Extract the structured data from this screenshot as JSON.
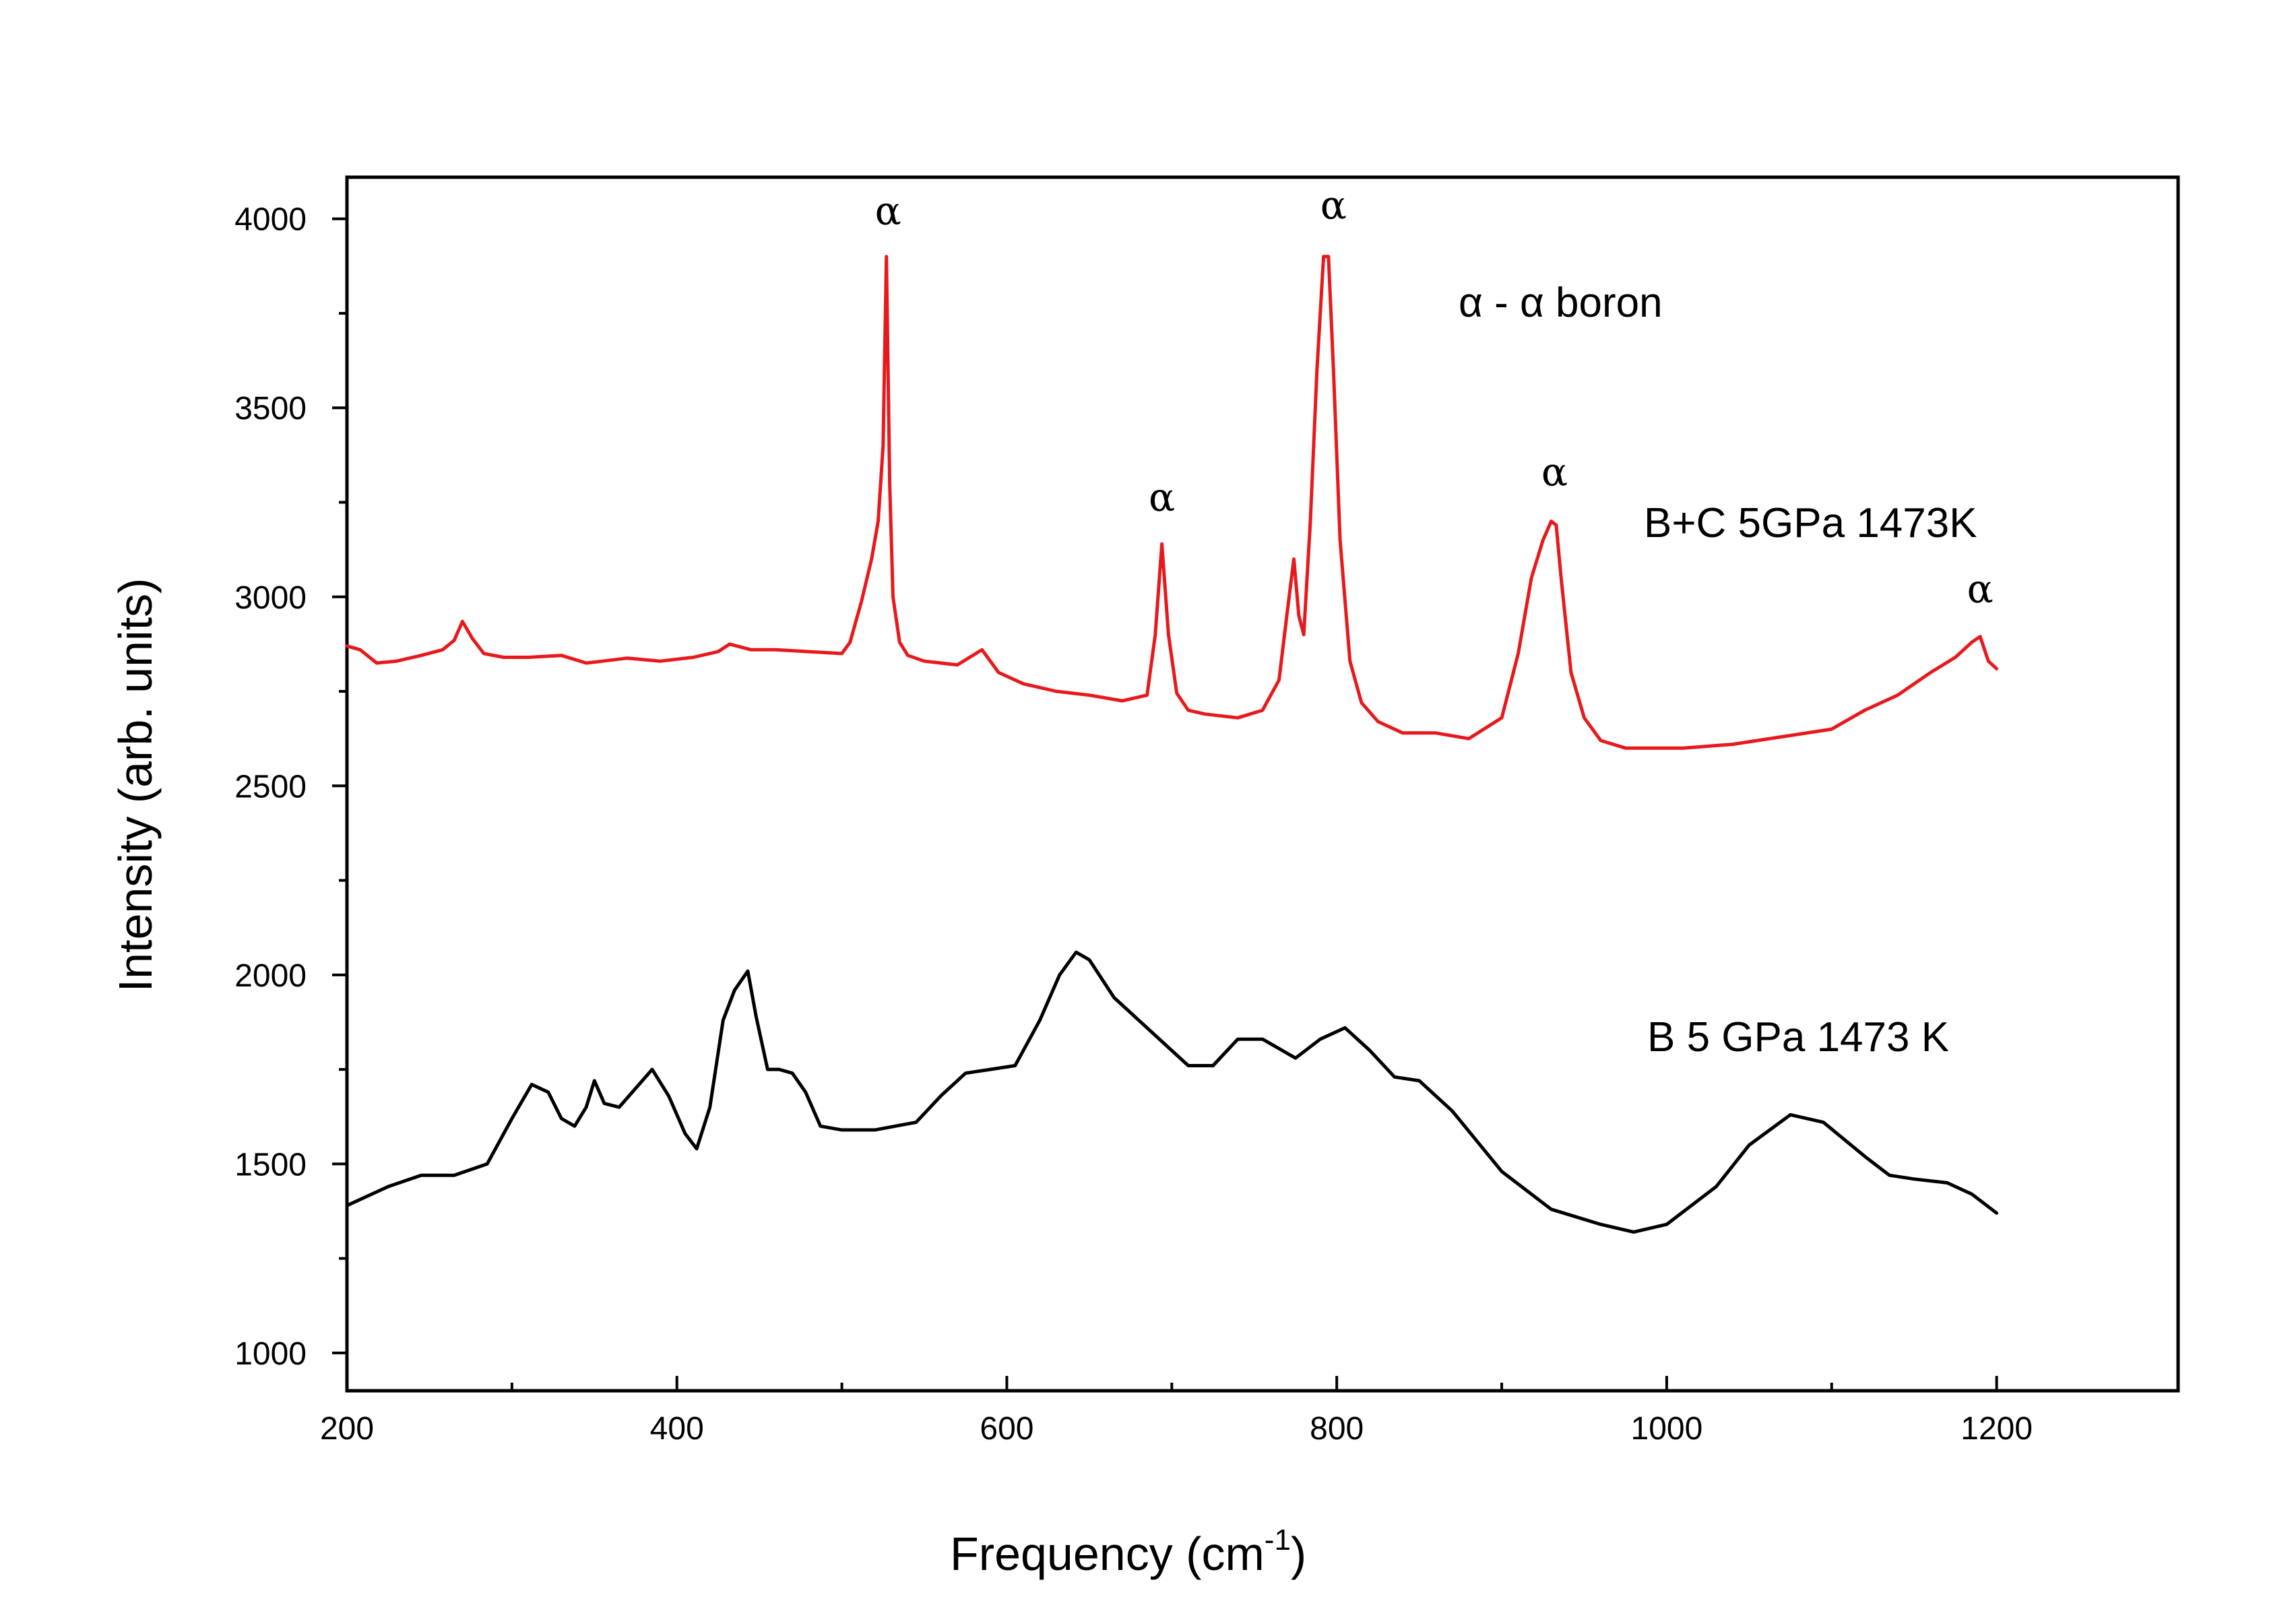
{
  "chart_data": {
    "type": "line",
    "title": "",
    "xlabel_main": "Frequency (cm",
    "xlabel_sup": "-1",
    "xlabel_close": ")",
    "ylabel": "Intensity (arb. units)",
    "xlim": [
      200,
      1310
    ],
    "ylim": [
      900,
      4110
    ],
    "x_major_ticks": [
      200,
      400,
      600,
      800,
      1000,
      1200
    ],
    "x_tick_labels": [
      "200",
      "400",
      "600",
      "800",
      "1000",
      "1200"
    ],
    "x_minor_ticks": [
      300,
      500,
      700,
      900,
      1100
    ],
    "y_major_ticks": [
      1000,
      1500,
      2000,
      2500,
      3000,
      3500,
      4000
    ],
    "y_tick_labels": [
      "1000",
      "1500",
      "2000",
      "2500",
      "3000",
      "3500",
      "4000"
    ],
    "y_minor_ticks": [
      1250,
      1750,
      2250,
      2750,
      3250,
      3750
    ],
    "series": [
      {
        "name": "B+C 5GPa 1473K",
        "color": "#e8191c",
        "x": [
          200,
          208,
          218,
          230,
          245,
          258,
          265,
          270,
          276,
          283,
          295,
          310,
          330,
          345,
          355,
          370,
          390,
          410,
          425,
          432,
          445,
          460,
          480,
          500,
          505,
          512,
          518,
          522,
          525,
          527,
          529,
          531,
          535,
          540,
          550,
          570,
          585,
          595,
          610,
          630,
          650,
          670,
          685,
          690,
          694,
          698,
          703,
          710,
          720,
          740,
          755,
          765,
          770,
          774,
          777,
          780,
          784,
          788,
          792,
          795,
          798,
          802,
          808,
          815,
          825,
          840,
          860,
          880,
          900,
          910,
          918,
          925,
          930,
          933,
          936,
          942,
          950,
          960,
          975,
          990,
          1010,
          1040,
          1070,
          1100,
          1120,
          1140,
          1160,
          1175,
          1185,
          1190,
          1195,
          1200
        ],
        "values": [
          2870,
          2860,
          2825,
          2830,
          2845,
          2860,
          2885,
          2935,
          2890,
          2850,
          2840,
          2840,
          2845,
          2825,
          2830,
          2838,
          2830,
          2840,
          2855,
          2875,
          2860,
          2860,
          2855,
          2850,
          2880,
          2990,
          3100,
          3200,
          3400,
          3900,
          3300,
          3000,
          2880,
          2845,
          2830,
          2820,
          2860,
          2800,
          2770,
          2750,
          2740,
          2725,
          2740,
          2900,
          3140,
          2900,
          2745,
          2700,
          2690,
          2680,
          2700,
          2780,
          2960,
          3100,
          2950,
          2900,
          3200,
          3600,
          3900,
          3900,
          3600,
          3150,
          2830,
          2720,
          2670,
          2640,
          2640,
          2625,
          2680,
          2850,
          3050,
          3150,
          3200,
          3190,
          3050,
          2800,
          2680,
          2620,
          2600,
          2600,
          2600,
          2610,
          2630,
          2650,
          2700,
          2740,
          2800,
          2840,
          2880,
          2895,
          2830,
          2810
        ]
      },
      {
        "name": "B 5 GPa 1473 K",
        "color": "#000000",
        "x": [
          200,
          225,
          245,
          265,
          285,
          300,
          312,
          322,
          330,
          338,
          345,
          350,
          356,
          365,
          375,
          385,
          395,
          405,
          412,
          420,
          428,
          435,
          443,
          448,
          455,
          462,
          470,
          478,
          487,
          500,
          520,
          545,
          560,
          575,
          590,
          605,
          620,
          632,
          642,
          650,
          665,
          690,
          710,
          725,
          740,
          755,
          775,
          790,
          805,
          820,
          835,
          850,
          870,
          900,
          930,
          960,
          980,
          1000,
          1030,
          1050,
          1075,
          1095,
          1120,
          1135,
          1150,
          1170,
          1185,
          1200
        ],
        "values": [
          1390,
          1440,
          1470,
          1470,
          1500,
          1620,
          1710,
          1690,
          1620,
          1600,
          1650,
          1720,
          1660,
          1650,
          1700,
          1750,
          1680,
          1580,
          1540,
          1650,
          1880,
          1960,
          2010,
          1890,
          1750,
          1750,
          1740,
          1690,
          1600,
          1590,
          1590,
          1610,
          1680,
          1740,
          1750,
          1760,
          1880,
          2000,
          2060,
          2040,
          1940,
          1840,
          1760,
          1760,
          1830,
          1830,
          1780,
          1830,
          1860,
          1800,
          1730,
          1720,
          1640,
          1480,
          1380,
          1340,
          1320,
          1340,
          1440,
          1550,
          1630,
          1610,
          1520,
          1470,
          1460,
          1450,
          1420,
          1370
        ]
      }
    ],
    "series_labels": [
      "B+C 5GPa 1473K",
      "B 5 GPa 1473 K"
    ],
    "legend_note": "α - α boron",
    "peak_markers": [
      {
        "label": "α",
        "x": 528,
        "y": 3985
      },
      {
        "label": "α",
        "x": 694,
        "y": 3228
      },
      {
        "label": "α",
        "x": 798,
        "y": 4000
      },
      {
        "label": "α",
        "x": 932,
        "y": 3295
      },
      {
        "label": "α",
        "x": 1190,
        "y": 2985
      }
    ]
  }
}
